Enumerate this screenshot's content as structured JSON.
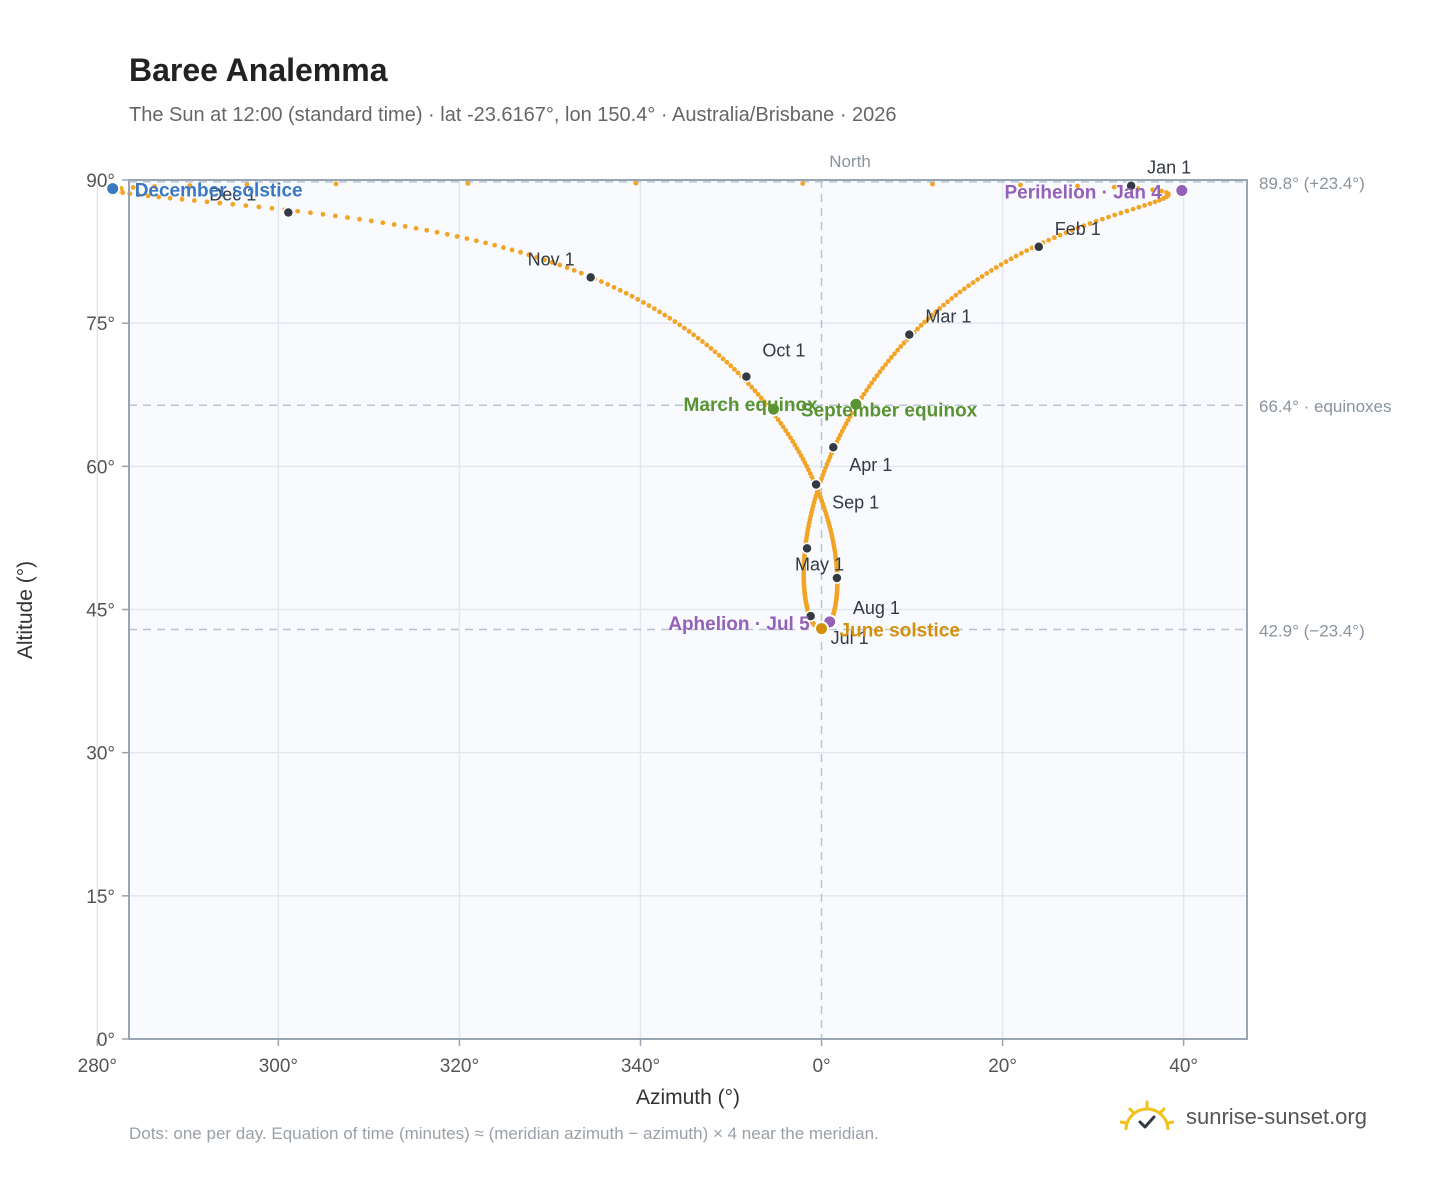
{
  "header": {
    "title": "Baree Analemma",
    "subtitle": "The Sun at 12:00 (standard time) · lat -23.6167°, lon 150.4° · Australia/Brisbane · 2026"
  },
  "footer": {
    "note": "Dots: one per day. Equation of time (minutes) ≈ (meridian azimuth − azimuth) × 4 near the meridian.",
    "brand": "sunrise-sunset.org"
  },
  "colors": {
    "path": "#f2a427",
    "month_marker": "#333a44",
    "december_solstice": "#3a78c2",
    "june_solstice": "#d4900d",
    "equinox": "#5a9432",
    "apsis": "#9460b8",
    "plot_bg": "#f8fafd",
    "grid": "#e3e8ee",
    "axis": "#9aa5b3"
  },
  "chart_data": {
    "type": "scatter",
    "xlabel": "Azimuth (°)",
    "ylabel": "Altitude (°)",
    "xlim": [
      -76.5,
      47
    ],
    "ylim": [
      0,
      90
    ],
    "x_ticks": [
      {
        "value": -80,
        "label": "280°"
      },
      {
        "value": -60,
        "label": "300°"
      },
      {
        "value": -40,
        "label": "320°"
      },
      {
        "value": -20,
        "label": "340°"
      },
      {
        "value": 0,
        "label": "0°"
      },
      {
        "value": 20,
        "label": "20°"
      },
      {
        "value": 40,
        "label": "40°"
      }
    ],
    "y_ticks": [
      {
        "value": 0,
        "label": "0°"
      },
      {
        "value": 15,
        "label": "15°"
      },
      {
        "value": 30,
        "label": "30°"
      },
      {
        "value": 45,
        "label": "45°"
      },
      {
        "value": 60,
        "label": "60°"
      },
      {
        "value": 75,
        "label": "75°"
      },
      {
        "value": 90,
        "label": "90°"
      }
    ],
    "grid": true,
    "meridian_label": "North",
    "reference_lines": [
      {
        "value": 89.8,
        "label": "89.8° (+23.4°)"
      },
      {
        "value": 66.4,
        "label": "66.4° · equinoxes"
      },
      {
        "value": 42.9,
        "label": "42.9° (−23.4°)"
      }
    ],
    "months": [
      {
        "label": "Jan 1",
        "az": 34.2,
        "alt": 89.4
      },
      {
        "label": "Feb 1",
        "az": 24,
        "alt": 83.0
      },
      {
        "label": "Mar 1",
        "az": 9.7,
        "alt": 73.8
      },
      {
        "label": "Apr 1",
        "az": 1.3,
        "alt": 62.0
      },
      {
        "label": "May 1",
        "az": -1.6,
        "alt": 51.4
      },
      {
        "label": "Jul 1",
        "az": -1.2,
        "alt": 44.3
      },
      {
        "label": "Aug 1",
        "az": 1.7,
        "alt": 48.3
      },
      {
        "label": "Sep 1",
        "az": -0.6,
        "alt": 58.1
      },
      {
        "label": "Oct 1",
        "az": -8.3,
        "alt": 69.4
      },
      {
        "label": "Nov 1",
        "az": -25.5,
        "alt": 79.8
      },
      {
        "label": "Dec 1",
        "az": -58.9,
        "alt": 86.6
      }
    ],
    "events": [
      {
        "label": "December solstice",
        "az": -78.3,
        "alt": 89.1,
        "kind": "december_solstice"
      },
      {
        "label": "Perihelion · Jan 4",
        "az": 39.8,
        "alt": 88.9,
        "kind": "apsis"
      },
      {
        "label": "March equinox",
        "az": -5.3,
        "alt": 66.0,
        "kind": "equinox"
      },
      {
        "label": "September equinox",
        "az": 3.8,
        "alt": 66.5,
        "kind": "equinox"
      },
      {
        "label": "Aphelion · Jul 5",
        "az": 0.9,
        "alt": 43.7,
        "kind": "apsis"
      },
      {
        "label": "June solstice",
        "az": 0,
        "alt": 43.0,
        "kind": "june_solstice"
      }
    ],
    "path_daily_dots": "365 points (one per day) tracing the analemma"
  }
}
